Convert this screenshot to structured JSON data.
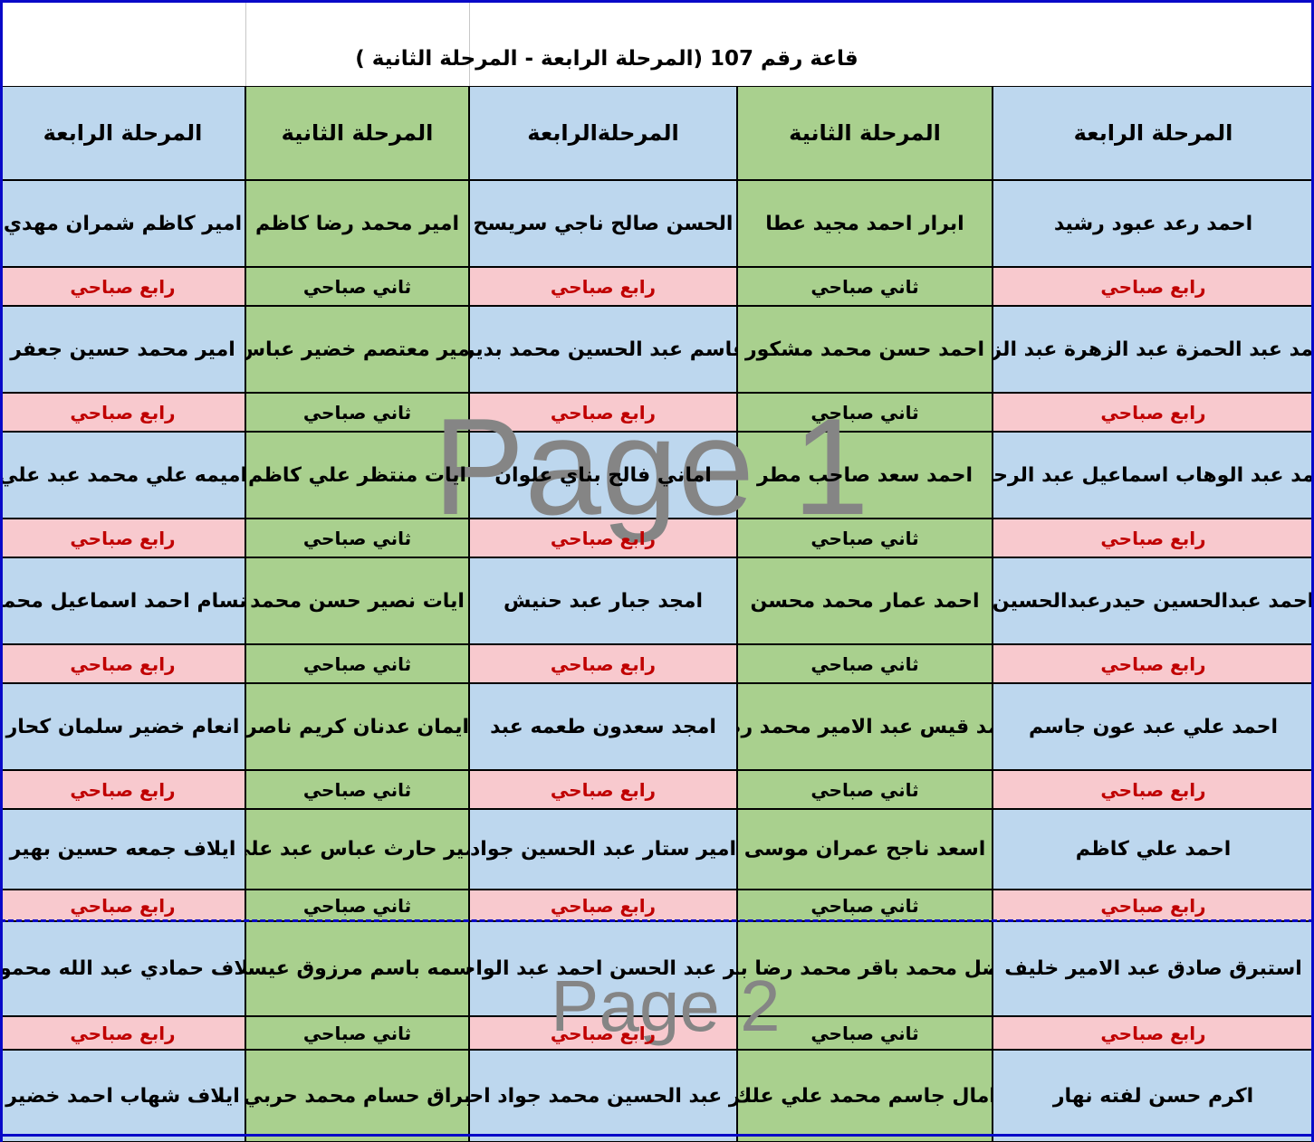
{
  "title": "قاعة رقم 107 (المرحلة الرابعة - المرحلة الثانية )",
  "watermarks": {
    "page1": "Page 1",
    "page2": "Page 2"
  },
  "colors": {
    "blue_fill": "#BDD7EE",
    "green_fill": "#A9D08E",
    "pink_fill": "#F8C9CE",
    "red_text": "#C00000",
    "border_black": "#000000",
    "watermark_gray": "#858585",
    "pagebreak_blue": "#0909C8"
  },
  "columns": [
    {
      "header": "المرحلة الرابعة",
      "type": "blue",
      "sublabel": "رابع صباحي",
      "students": [
        "احمد رعد عبود رشيد",
        "احمد عبد الحمزة عبد الزهرة عبد الزيد",
        "احمد عبد الوهاب اسماعيل عبد الرحيم",
        "احمد عبدالحسين حيدرعبدالحسين",
        "احمد علي عبد عون جاسم",
        "احمد علي كاظم",
        "استبرق صادق عبد الامير خليف",
        "اكرم حسن لفته نهار"
      ]
    },
    {
      "header": "المرحلة الثانية",
      "type": "green",
      "sublabel": "ثاني  صباحي",
      "students": [
        "ابرار احمد مجيد عطا",
        "احمد حسن محمد مشكور",
        "احمد سعد صاحب مطر",
        "احمد عمار محمد محسن",
        "حمد قيس عبد الامير محمد رض",
        "اسعد ناجح عمران موسى",
        "فضل محمد باقر محمد رضا باق",
        "امال جاسم محمد علي علك"
      ]
    },
    {
      "header": "المرحلةالرابعة",
      "type": "blue",
      "sublabel": "رابع صباحي",
      "students": [
        "الحسن صالح ناجي سريسح",
        "القاسم عبد الحسين محمد بديري",
        "اماني فالح بناي علوان",
        "امجد جبار عبد حنيش",
        "امجد سعدون طعمه عبد",
        "امير ستار عبد الحسين جواد",
        "مير عبد الحسن احمد عبد الواحد",
        "مير عبد الحسين محمد جواد احمد"
      ]
    },
    {
      "header": "المرحلة الثانية",
      "type": "green",
      "sublabel": "ثاني  صباحي",
      "students": [
        "امير محمد رضا كاظم",
        "امير معتصم خضير عباس",
        "ايات منتظر علي كاظم",
        "ايات نصير حسن محمد",
        "ايمان عدنان كريم ناصر",
        "أمير حارث عباس عبد علي",
        "باسمه باسم مرزوق عيسى",
        "براق حسام محمد حربي"
      ]
    },
    {
      "header": "المرحلة الرابعة",
      "type": "blue",
      "sublabel": "رابع صباحي",
      "students": [
        "امير كاظم شمران مهدي",
        "امير محمد حسين جعفر",
        "اميمه علي محمد عبد علي",
        "انسام احمد اسماعيل محمد",
        "انعام خضير سلمان كحار",
        "ايلاف جمعه حسين بهير",
        "يلاف حمادي عبد الله محمود",
        "ايلاف شهاب احمد خضير"
      ]
    }
  ]
}
